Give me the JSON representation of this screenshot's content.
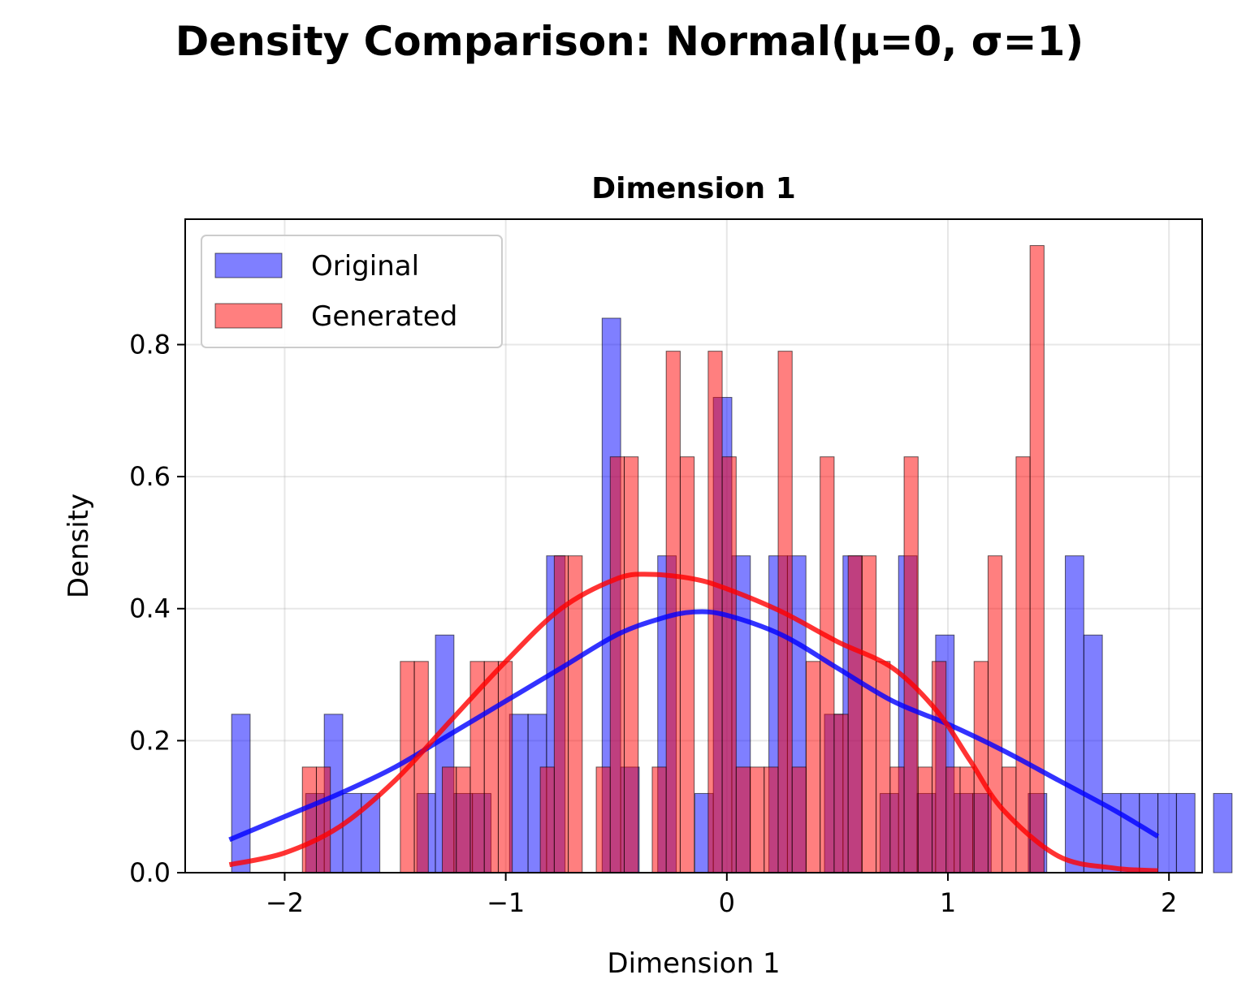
{
  "figure": {
    "suptitle": "Density Comparison: Normal(μ=0, σ=1)"
  },
  "chart_data": {
    "type": "histogram",
    "title": "Dimension 1",
    "xlabel": "Dimension 1",
    "ylabel": "Density",
    "xlim": [
      -2.45,
      2.15
    ],
    "ylim": [
      0,
      0.99
    ],
    "xticks": [
      -2,
      -1,
      0,
      1,
      2
    ],
    "xtick_labels": [
      "−2",
      "−1",
      "0",
      "1",
      "2"
    ],
    "yticks": [
      0.0,
      0.2,
      0.4,
      0.6,
      0.8
    ],
    "ytick_labels": [
      "0.0",
      "0.2",
      "0.4",
      "0.6",
      "0.8"
    ],
    "grid": true,
    "legend": {
      "placement": "upper-left"
    },
    "series": [
      {
        "name": "Original",
        "kind": "histogram",
        "color": "#0000ff",
        "alpha": 0.5,
        "bin_start": -2.24,
        "bin_width": 0.0838,
        "density": [
          0.24,
          0,
          0,
          0,
          0.12,
          0.24,
          0.12,
          0.12,
          0,
          0,
          0.12,
          0.36,
          0.12,
          0.12,
          0,
          0.24,
          0.24,
          0.48,
          0,
          0,
          0.84,
          0.16,
          0,
          0.48,
          0,
          0.12,
          0.72,
          0.48,
          0,
          0.48,
          0.48,
          0,
          0.24,
          0.48,
          0,
          0.12,
          0.48,
          0.12,
          0.36,
          0.12,
          0.12,
          0,
          0,
          0.12,
          0,
          0.48,
          0.36,
          0.12,
          0.12,
          0.12,
          0.12,
          0.12,
          0,
          0.12
        ]
      },
      {
        "name": "Generated",
        "kind": "histogram",
        "color": "#ff0000",
        "alpha": 0.5,
        "bin_start": -1.92,
        "bin_width": 0.0633,
        "density": [
          0.16,
          0.16,
          0,
          0,
          0,
          0,
          0,
          0.32,
          0.32,
          0,
          0.16,
          0.16,
          0.32,
          0.32,
          0.32,
          0,
          0,
          0.16,
          0.48,
          0.48,
          0,
          0.16,
          0.63,
          0.63,
          0,
          0.16,
          0.79,
          0.63,
          0,
          0.79,
          0.63,
          0.16,
          0.16,
          0.16,
          0.79,
          0.16,
          0.32,
          0.63,
          0.24,
          0.48,
          0.48,
          0.32,
          0.16,
          0.63,
          0.16,
          0.32,
          0.16,
          0.16,
          0.32,
          0.48,
          0.16,
          0.63,
          0.95
        ]
      },
      {
        "name": "Original KDE",
        "kind": "line",
        "color": "#0000ff",
        "alpha": 0.8,
        "x": [
          -2.25,
          -2.0,
          -1.75,
          -1.5,
          -1.25,
          -1.0,
          -0.75,
          -0.5,
          -0.3,
          -0.15,
          0.0,
          0.25,
          0.5,
          0.75,
          1.0,
          1.25,
          1.5,
          1.75,
          1.95
        ],
        "y": [
          0.05,
          0.085,
          0.12,
          0.16,
          0.21,
          0.26,
          0.31,
          0.36,
          0.385,
          0.395,
          0.39,
          0.36,
          0.31,
          0.26,
          0.225,
          0.185,
          0.14,
          0.095,
          0.055
        ]
      },
      {
        "name": "Generated KDE",
        "kind": "line",
        "color": "#ff0000",
        "alpha": 0.8,
        "x": [
          -2.25,
          -2.0,
          -1.75,
          -1.5,
          -1.25,
          -1.0,
          -0.75,
          -0.5,
          -0.35,
          -0.15,
          0.0,
          0.25,
          0.5,
          0.75,
          0.95,
          1.1,
          1.25,
          1.5,
          1.75,
          1.95
        ],
        "y": [
          0.012,
          0.03,
          0.07,
          0.14,
          0.23,
          0.32,
          0.4,
          0.445,
          0.452,
          0.445,
          0.43,
          0.395,
          0.35,
          0.31,
          0.245,
          0.17,
          0.095,
          0.025,
          0.007,
          0.003
        ]
      }
    ]
  }
}
